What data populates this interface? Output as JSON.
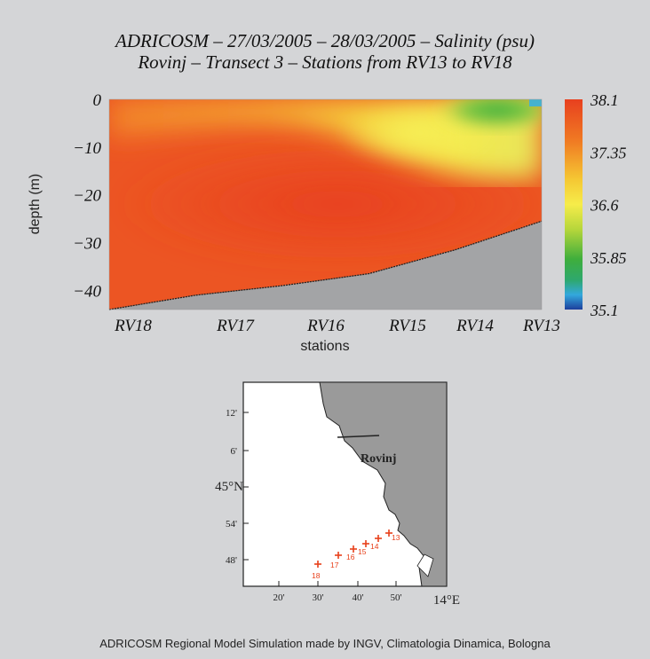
{
  "chart_data": {
    "type": "heatmap",
    "title": "ADRICOSM – 27/03/2005 – 28/03/2005 – Salinity (psu)",
    "subtitle": "Rovinj – Transect 3 – Stations from RV13 to RV18",
    "xlabel": "stations",
    "ylabel": "depth (m)",
    "x_categories": [
      "RV18",
      "RV17",
      "RV16",
      "RV15",
      "RV14",
      "RV13"
    ],
    "y_ticks": [
      "0",
      "−10",
      "−20",
      "−30",
      "−40"
    ],
    "ylim": [
      -44,
      0
    ],
    "colorbar": {
      "ticks": [
        "38.1",
        "37.35",
        "36.6",
        "35.85",
        "35.1"
      ],
      "range": [
        35.1,
        38.1
      ]
    },
    "bottom_depth_m": [
      -44,
      -41,
      -39,
      -36.5,
      -31.5,
      -25.5
    ],
    "description_values": {
      "surface_salinity": [
        37.6,
        37.5,
        37.2,
        36.9,
        36.3,
        35.6
      ],
      "core_salinity": [
        38.0,
        38.05,
        37.9,
        37.7,
        37.5,
        37.3
      ]
    }
  },
  "map": {
    "lat_ticks": [
      "12'",
      "6'",
      "45°N",
      "54'",
      "48'"
    ],
    "lon_ticks": [
      "20'",
      "30'",
      "40'",
      "50'",
      "14°E"
    ],
    "place_label": "Rovinj",
    "station_labels": [
      "13",
      "14",
      "15",
      "16",
      "17",
      "18"
    ],
    "station_color": "#e8401a",
    "land_color": "#9a9a9a"
  },
  "footer": "ADRICOSM Regional Model Simulation made by INGV, Climatologia Dinamica, Bologna"
}
